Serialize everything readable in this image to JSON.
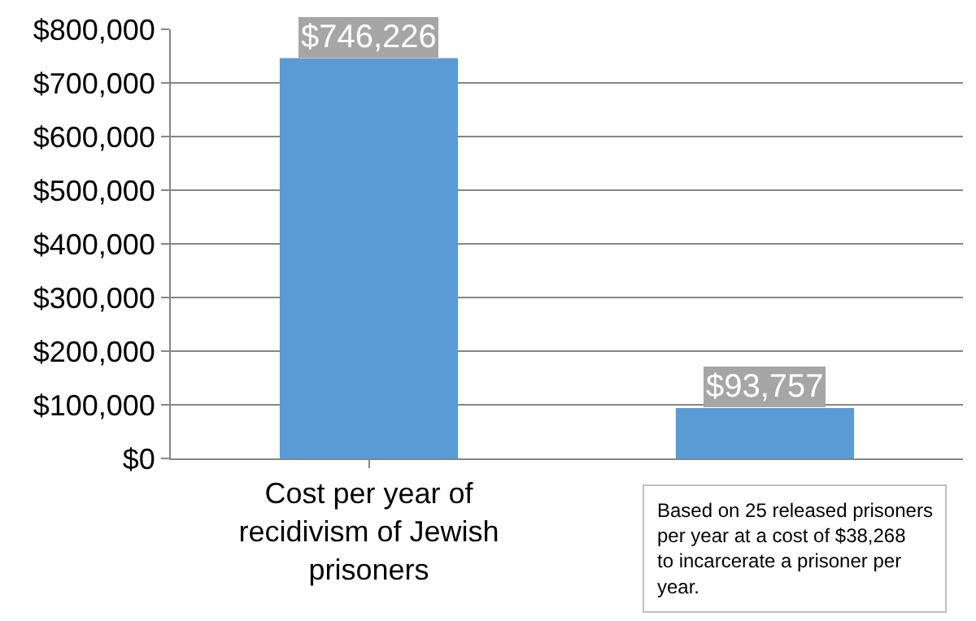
{
  "chart_data": {
    "type": "bar",
    "categories": [
      "Cost per year of recidivism of Jewish prisoners",
      null
    ],
    "values": [
      746226,
      93757
    ],
    "color": "#5b9bd5",
    "value_labels": [
      "$746,226",
      "$93,757"
    ],
    "ylim": [
      0,
      800000
    ],
    "yticks": [
      {
        "value": 0,
        "label": "$0"
      },
      {
        "value": 100000,
        "label": "$100,000"
      },
      {
        "value": 200000,
        "label": "$200,000"
      },
      {
        "value": 300000,
        "label": "$300,000"
      },
      {
        "value": 400000,
        "label": "$400,000"
      },
      {
        "value": 500000,
        "label": "$500,000"
      },
      {
        "value": 600000,
        "label": "$600,000"
      },
      {
        "value": 700000,
        "label": "$700,000"
      },
      {
        "value": 800000,
        "label": "$800,000"
      }
    ],
    "grid": "y",
    "annotations": [
      "Based on 25 released prisoners per year at a cost of $38,268 to incarcerate a prisoner per year."
    ]
  }
}
